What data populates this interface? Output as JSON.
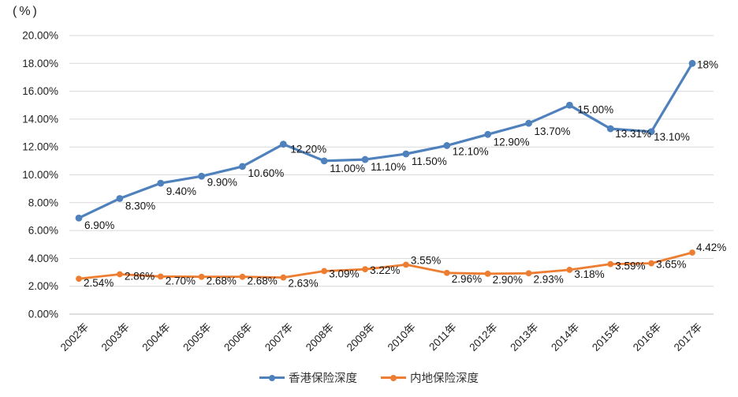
{
  "page": {
    "background": "#FFFFFF"
  },
  "colors": {
    "hk_series": "#4F81BD",
    "mainland_series": "#ED7D31",
    "gridline": "#D9D9D9",
    "axis_line": "#BFBFBF",
    "tick_text": "#1F1F1F",
    "data_label_text": "#141414",
    "legend_text": "#333333"
  },
  "chart_data": {
    "type": "line",
    "title": "",
    "unit_label": "(%)",
    "xlabel": "",
    "ylabel": "(%)",
    "grid": true,
    "legend_position": "bottom",
    "categories": [
      "2002年",
      "2003年",
      "2004年",
      "2005年",
      "2006年",
      "2007年",
      "2008年",
      "2009年",
      "2010年",
      "2011年",
      "2012年",
      "2013年",
      "2014年",
      "2015年",
      "2016年",
      "2017年"
    ],
    "y_axis": {
      "min": 0,
      "max": 20,
      "step": 2,
      "tick_labels": [
        "20.00%",
        "18.00%",
        "16.00%",
        "14.00%",
        "12.00%",
        "10.00%",
        "8.00%",
        "6.00%",
        "4.00%",
        "2.00%",
        "0.00%"
      ]
    },
    "series": [
      {
        "name": "香港保险深度",
        "color": "#4F81BD",
        "values": [
          6.9,
          8.3,
          9.4,
          9.9,
          10.6,
          12.2,
          11.0,
          11.1,
          11.5,
          12.1,
          12.9,
          13.7,
          15.0,
          13.31,
          13.1,
          18.0
        ],
        "labels": [
          "6.90%",
          "8.30%",
          "9.40%",
          "9.90%",
          "10.60%",
          "12.20%",
          "11.00%",
          "11.10%",
          "11.50%",
          "12.10%",
          "12.90%",
          "13.70%",
          "15.00%",
          "13.31%",
          "13.10%",
          "18%"
        ]
      },
      {
        "name": "内地保险深度",
        "color": "#ED7D31",
        "values": [
          2.54,
          2.86,
          2.7,
          2.68,
          2.68,
          2.63,
          3.09,
          3.22,
          3.55,
          2.96,
          2.9,
          2.93,
          3.18,
          3.59,
          3.65,
          4.42
        ],
        "labels": [
          "2.54%",
          "2.86%",
          "2.70%",
          "2.68%",
          "2.68%",
          "2.63%",
          "3.09%",
          "3.22%",
          "3.55%",
          "2.96%",
          "2.90%",
          "2.93%",
          "3.18%",
          "3.59%",
          "3.65%",
          "4.42%"
        ]
      }
    ]
  }
}
